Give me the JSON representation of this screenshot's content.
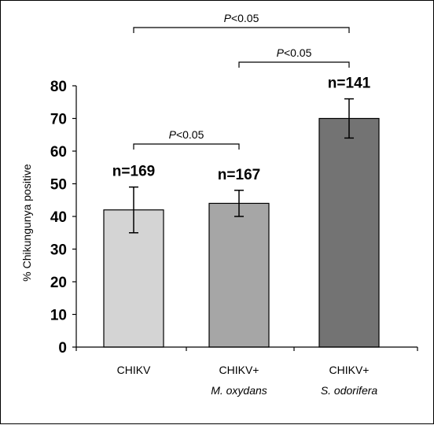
{
  "chart_data": {
    "type": "bar",
    "categories": [
      {
        "line1": "CHIKV",
        "line2": ""
      },
      {
        "line1": "CHIKV+",
        "line2": "M. oxydans"
      },
      {
        "line1": "CHIKV+",
        "line2": "S. odorifera"
      }
    ],
    "values": [
      42,
      44,
      70
    ],
    "errors": [
      7,
      4,
      6
    ],
    "bar_labels": [
      "n=169",
      "n=167",
      "n=141"
    ],
    "bar_colors": [
      "#d4d4d4",
      "#a6a6a6",
      "#737373"
    ],
    "ylabel": "% Chikungunya positive",
    "xlabel": "",
    "ylim": [
      0,
      80
    ],
    "yticks": [
      0,
      10,
      20,
      30,
      40,
      50,
      60,
      70,
      80
    ],
    "grid": false,
    "significance": [
      {
        "from": 0,
        "to": 2,
        "p": "P",
        "rest": "<0.05"
      },
      {
        "from": 1,
        "to": 2,
        "p": "P",
        "rest": "<0.05"
      },
      {
        "from": 0,
        "to": 1,
        "p": "P",
        "rest": "<0.05"
      }
    ]
  }
}
